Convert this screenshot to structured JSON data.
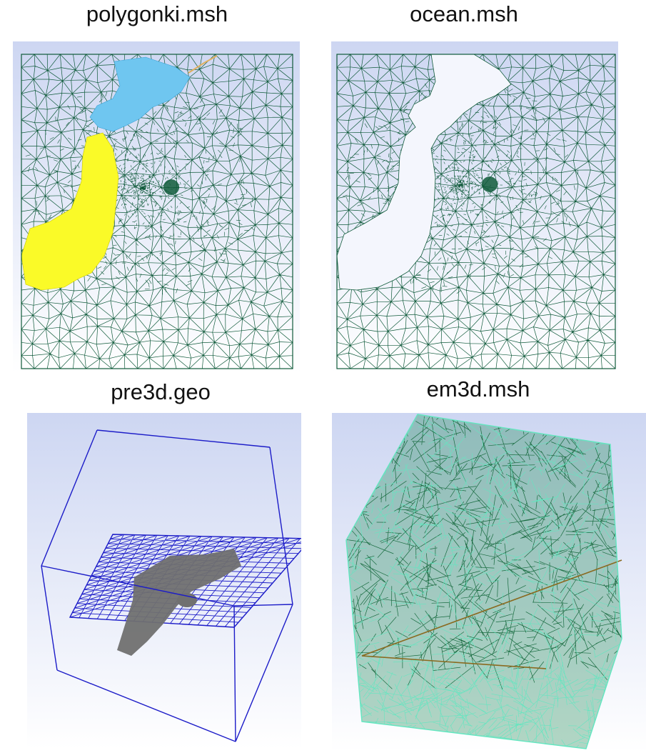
{
  "panels": [
    {
      "title": "polygonki.msh",
      "view": "2d-ocean-mesh-with-land-polygons"
    },
    {
      "title": "ocean.msh",
      "view": "2d-ocean-mesh"
    },
    {
      "title": "pre3d.geo",
      "view": "3d-box-geometry-wireframe"
    },
    {
      "title": "em3d.msh",
      "view": "3d-tetrahedral-mesh"
    }
  ],
  "colors": {
    "background_gradient_top": "#cdd6f2",
    "background_gradient_bottom": "#ffffff",
    "mesh_edges": "#0f5a3a",
    "land_north": "#6fc6f0",
    "land_main": "#fafa28",
    "geo_wire": "#1c1cc8",
    "geo_land": "#707070",
    "mesh3d_edges": "#1f8a55",
    "mesh3d_light": "#63e6c0"
  }
}
